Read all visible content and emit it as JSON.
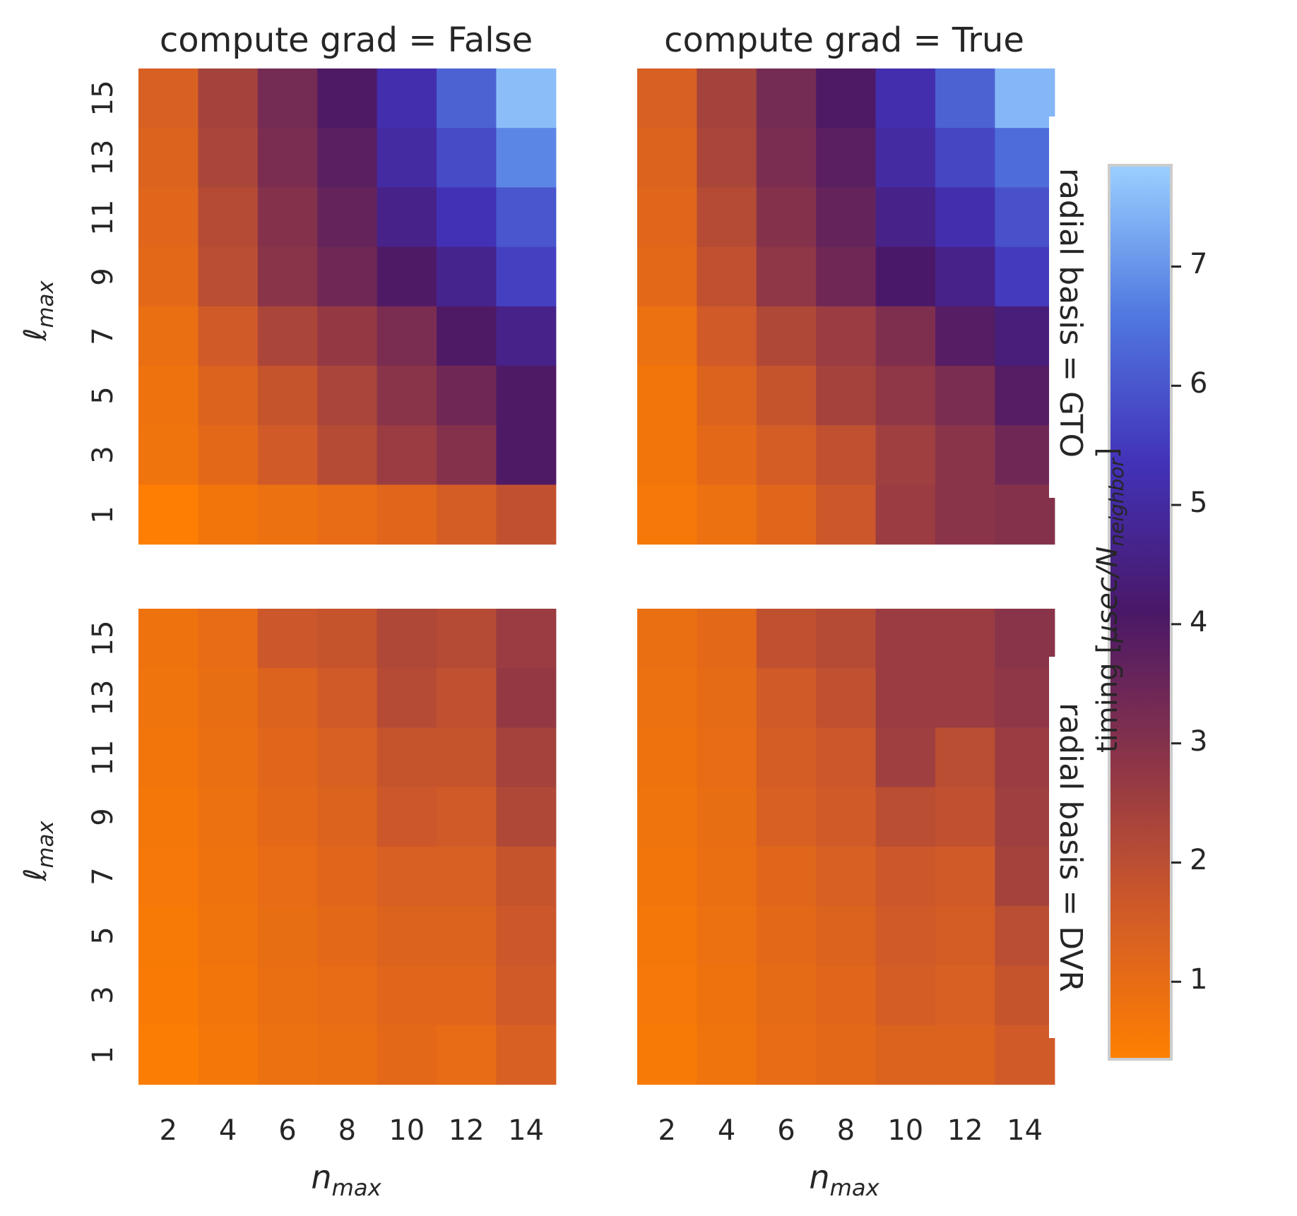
{
  "chart_data": {
    "type": "heatmap",
    "row_facet_labels": [
      "radial basis = GTO",
      "radial basis = DVR"
    ],
    "col_facet_labels": [
      "compute grad = False",
      "compute grad = True"
    ],
    "xlabel": "n_max",
    "ylabel": "ℓ_max",
    "x_ticks": [
      2,
      4,
      6,
      8,
      10,
      12,
      14
    ],
    "y_ticks": [
      1,
      3,
      5,
      7,
      9,
      11,
      13,
      15
    ],
    "colorbar": {
      "label": "timing [μsec/N_neighbor]",
      "range": [
        0.35,
        7.85
      ],
      "ticks": [
        1,
        2,
        3,
        4,
        5,
        6,
        7
      ],
      "colors": [
        "#ff8000",
        "#d05a28",
        "#8c3548",
        "#4a1868",
        "#4232b8",
        "#5078e0",
        "#9ad0ff"
      ]
    },
    "panels": [
      {
        "row": "GTO",
        "col": "False",
        "values_by_lmax_from_15_to_1": [
          [
            1.4,
            2.4,
            3.3,
            4.0,
            5.2,
            6.2,
            7.6
          ],
          [
            1.3,
            2.3,
            3.2,
            3.8,
            5.0,
            5.8,
            6.8
          ],
          [
            1.2,
            2.1,
            3.0,
            3.6,
            4.6,
            5.3,
            6.0
          ],
          [
            1.1,
            2.0,
            2.9,
            3.4,
            4.0,
            4.7,
            5.6
          ],
          [
            0.9,
            1.6,
            2.3,
            2.7,
            3.2,
            4.0,
            4.6
          ],
          [
            0.8,
            1.3,
            1.8,
            2.3,
            2.9,
            3.4,
            4.0
          ],
          [
            0.75,
            1.1,
            1.6,
            2.1,
            2.6,
            3.0,
            4.0
          ],
          [
            0.4,
            0.7,
            0.85,
            1.0,
            1.2,
            1.5,
            1.9
          ]
        ]
      },
      {
        "row": "GTO",
        "col": "True",
        "values_by_lmax_from_15_to_1": [
          [
            1.4,
            2.4,
            3.3,
            4.0,
            5.2,
            6.2,
            7.5
          ],
          [
            1.3,
            2.3,
            3.2,
            3.8,
            5.0,
            5.7,
            6.4
          ],
          [
            1.2,
            2.1,
            3.0,
            3.6,
            4.6,
            5.2,
            5.9
          ],
          [
            1.1,
            1.9,
            2.8,
            3.4,
            4.1,
            4.6,
            5.5
          ],
          [
            0.85,
            1.6,
            2.2,
            2.6,
            3.1,
            3.9,
            4.4
          ],
          [
            0.7,
            1.3,
            1.8,
            2.4,
            2.8,
            3.2,
            3.9
          ],
          [
            0.7,
            1.1,
            1.5,
            1.9,
            2.5,
            2.9,
            3.4
          ],
          [
            0.6,
            0.85,
            1.2,
            1.7,
            2.6,
            2.9,
            3.0
          ]
        ]
      },
      {
        "row": "DVR",
        "col": "False",
        "values_by_lmax_from_15_to_1": [
          [
            0.8,
            1.0,
            1.7,
            1.8,
            2.2,
            2.1,
            2.6
          ],
          [
            0.75,
            0.95,
            1.3,
            1.6,
            2.1,
            1.9,
            2.7
          ],
          [
            0.7,
            0.9,
            1.2,
            1.4,
            1.8,
            1.8,
            2.4
          ],
          [
            0.65,
            0.85,
            1.1,
            1.3,
            1.7,
            1.6,
            2.2
          ],
          [
            0.6,
            0.8,
            1.0,
            1.2,
            1.4,
            1.4,
            1.8
          ],
          [
            0.55,
            0.75,
            0.95,
            1.1,
            1.3,
            1.3,
            1.7
          ],
          [
            0.5,
            0.7,
            0.9,
            1.0,
            1.2,
            1.2,
            1.6
          ],
          [
            0.45,
            0.65,
            0.85,
            0.9,
            1.1,
            1.0,
            1.4
          ]
        ]
      },
      {
        "row": "DVR",
        "col": "True",
        "values_by_lmax_from_15_to_1": [
          [
            0.9,
            1.1,
            1.9,
            2.1,
            2.6,
            2.6,
            2.9
          ],
          [
            0.85,
            1.05,
            1.6,
            1.9,
            2.6,
            2.6,
            2.8
          ],
          [
            0.8,
            1.0,
            1.5,
            1.7,
            2.5,
            2.0,
            2.6
          ],
          [
            0.75,
            0.95,
            1.4,
            1.6,
            2.0,
            1.9,
            2.5
          ],
          [
            0.7,
            0.9,
            1.2,
            1.4,
            1.7,
            1.6,
            2.4
          ],
          [
            0.65,
            0.85,
            1.1,
            1.3,
            1.6,
            1.5,
            2.0
          ],
          [
            0.6,
            0.8,
            1.05,
            1.2,
            1.5,
            1.4,
            1.8
          ],
          [
            0.55,
            0.75,
            1.0,
            1.1,
            1.3,
            1.3,
            1.6
          ]
        ]
      }
    ]
  }
}
